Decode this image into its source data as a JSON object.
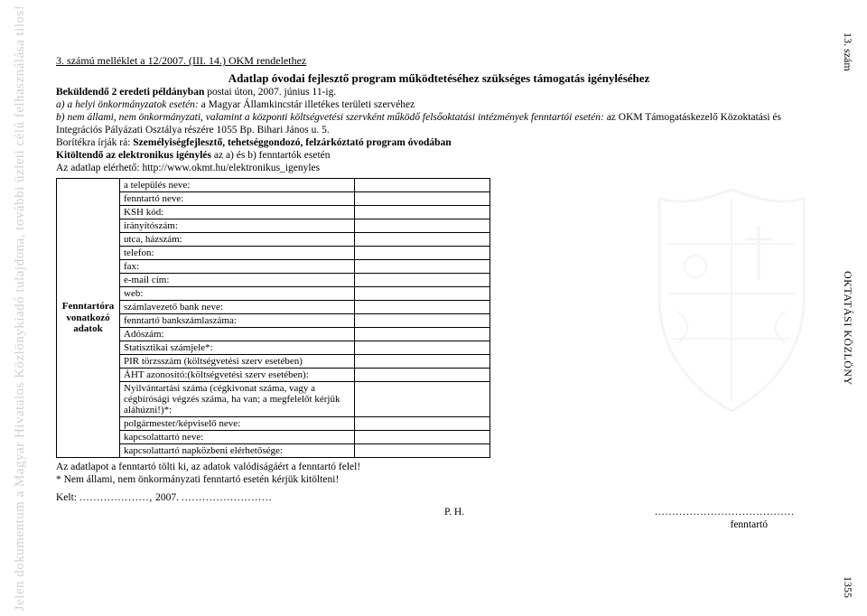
{
  "left_watermark": "Jelen dokumentum a Magyar Hivatalos Közlönykiadó tulajdona, további üzleti célú felhasználása tilos!",
  "right_top": "13. szám",
  "right_mid": "OKTATÁSI KÖZLÖNY",
  "right_bottom": "1355",
  "attachment_ref": "3. számú melléklet a 12/2007. (III. 14.) OKM rendelethez",
  "title": "Adatlap óvodai fejlesztő program működtetéséhez szükséges támogatás igényléséhez",
  "send_line_bold": "Beküldendő 2 eredeti példányban",
  "send_line_rest": " postai úton, 2007. június 11-ig.",
  "line_a": "a) a helyi önkormányzatok esetén:",
  "line_a_rest": " a Magyar Államkincstár illetékes területi szervéhez",
  "line_b": "b) nem állami, nem önkormányzati, valamint a központi költségvetési szervként működő felsőoktatási intézmények fenntartói esetén:",
  "line_b_rest": " az OKM Támogatáskezelő Közoktatási és Integrációs Pályázati Osztálya részére 1055 Bp. Bihari János u. 5.",
  "boritek_pre": "Borítékra írják rá: ",
  "boritek_bold": "Személyiségfejlesztő, tehetséggondozó, felzárkóztató program óvodában",
  "kitoltendo_bold": "Kitöltendő az elektronikus igénylés",
  "kitoltendo_rest": " az a) és b) fenntartók esetén",
  "adatlap_line": "Az adatlap elérhető: http://www.okmt.hu/elektronikus_igenyles",
  "side_label_l1": "Fenntartóra",
  "side_label_l2": "vonatkozó",
  "side_label_l3": "adatok",
  "rows": [
    "a település neve:",
    "fenntartó neve:",
    "KSH kód:",
    "irányítószám:",
    "utca, házszám:",
    "telefon:",
    "fax:",
    "e-mail cím:",
    "web:",
    "számlavezető bank neve:",
    "fenntartó bankszámlaszáma:",
    "Adószám:",
    "Statisztikai számjele*:",
    "PIR törzsszám (költségvetési szerv esetében)",
    "ÁHT azonosító:(költségvetési szerv esetében):",
    "Nyilvántartási száma (cégkivonat száma, vagy a cégbírósági végzés száma, ha van; a megfelelőt kérjük aláhúzni!)*:",
    "polgármester/képviselő neve:",
    "kapcsolattartó neve:",
    "kapcsolattartó napközbeni elérhetősége:"
  ],
  "footer1": "Az adatlapot a fenntartó tölti ki, az adatok valódiságáért a fenntartó felel!",
  "footer2": "* Nem állami, nem önkormányzati fenntartó esetén kérjük kitölteni!",
  "kelt": "Kelt:",
  "kelt_dots1": "....................,",
  "kelt_year": " 2007. ",
  "kelt_dots2": "..........................",
  "ph": "P. H.",
  "sign_dots": "........................................",
  "sign_label": "fenntartó"
}
